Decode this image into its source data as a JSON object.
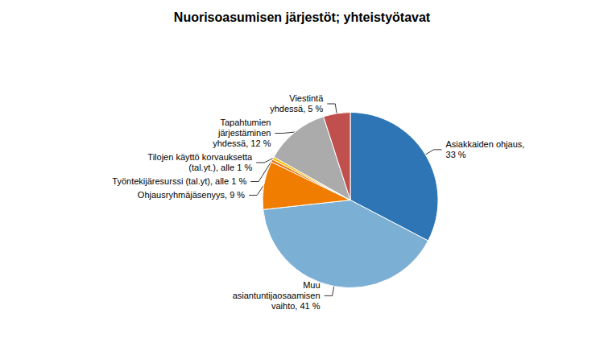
{
  "chart_data": {
    "type": "pie",
    "title": "Nuorisoasumisen järjestöt; yhteistyötavat",
    "categories": [
      "Asiakkaiden ohjaus,\n33 %",
      "Muu\nasiantuntijaosaamisen\nvaihto, 41 %",
      "Ohjausryhmäjäsenyys, 9 %",
      "Työntekijäresurssi (tal.yt), alle 1 %",
      "Tilojen käyttö korvauksetta\n(tal.yt.), alle 1 %",
      "Tapahtumien\njärjestäminen\nyhdessä, 12 %",
      "Viestintä\nyhdessä, 5 %"
    ],
    "values": [
      33,
      41,
      9,
      0.5,
      0.5,
      12,
      5
    ],
    "colors": [
      "#2E75B6",
      "#7BAFD4",
      "#F07D00",
      "#E36C0A",
      "#F5C200",
      "#ABABAB",
      "#C0504D"
    ]
  }
}
